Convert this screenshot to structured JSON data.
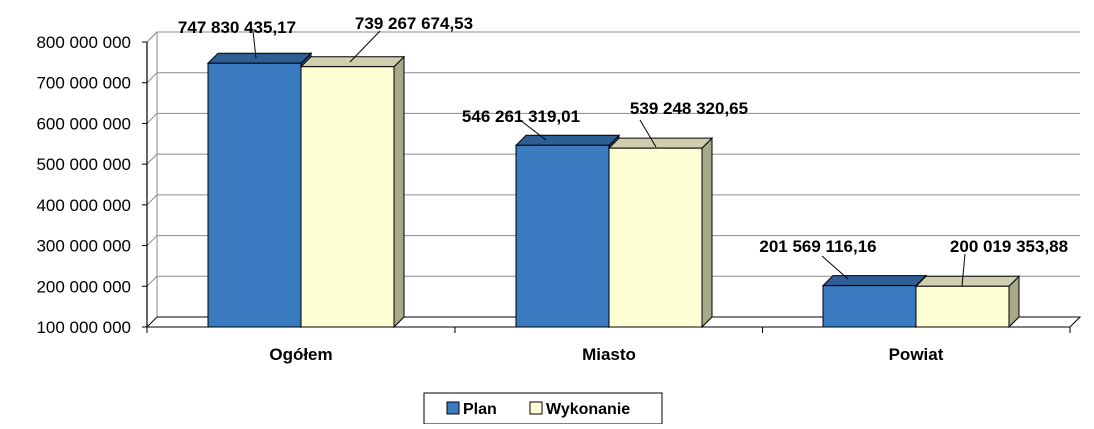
{
  "chart_data": {
    "type": "bar",
    "categories": [
      "Ogółem",
      "Miasto",
      "Powiat"
    ],
    "series": [
      {
        "name": "Plan",
        "values": [
          747830435.17,
          546261319.01,
          201569116.16
        ],
        "labels": [
          "747 830 435,17",
          "546 261 319,01",
          "201 569 116,16"
        ],
        "color": "#3a7ac0",
        "side_color": "#244d7a",
        "top_color": "#2d5f95"
      },
      {
        "name": "Wykonanie",
        "values": [
          739267674.53,
          539248320.65,
          200019353.88
        ],
        "labels": [
          "739 267 674,53",
          "539 248 320,65",
          "200 019 353,88"
        ],
        "color": "#ffffd6",
        "side_color": "#a8a88a",
        "top_color": "#cfcfb0"
      }
    ],
    "y_ticks": [
      100000000,
      200000000,
      300000000,
      400000000,
      500000000,
      600000000,
      700000000,
      800000000
    ],
    "y_tick_labels": [
      "100 000 000",
      "200 000 000",
      "300 000 000",
      "400 000 000",
      "500 000 000",
      "600 000 000",
      "700 000 000",
      "800 000 000"
    ],
    "ylim": [
      100000000,
      800000000
    ],
    "grid": true,
    "legend_position": "bottom",
    "title": "",
    "xlabel": "",
    "ylabel": ""
  }
}
